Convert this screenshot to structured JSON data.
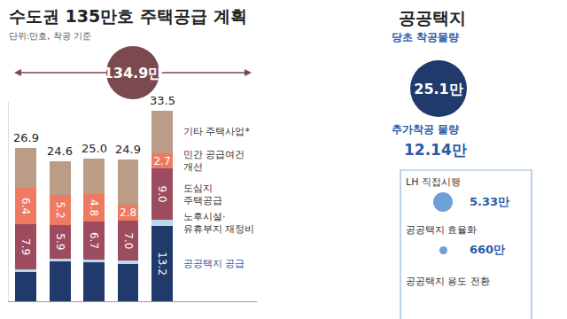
{
  "chart_data": {
    "type": "bar",
    "title": "수도권 135만호 주택공급 계획",
    "subtitle": "단위:만호, 착공 기준",
    "stacked": true,
    "tick_labels": false,
    "categories": [
      null,
      null,
      null,
      null,
      null
    ],
    "ylim": [
      0,
      35
    ],
    "series": [
      {
        "name": "공공택지 공급",
        "color": "#1f3a6b",
        "values": [
          5.1,
          7.0,
          6.8,
          6.6,
          13.2
        ],
        "value_labels": [
          null,
          null,
          null,
          null,
          "13.2"
        ]
      },
      {
        "name": "노후시설·\n유휴부지 재정비",
        "color": "#bcd6ee",
        "values": [
          0.5,
          0.5,
          0.5,
          0.5,
          1.1
        ],
        "data_labels": false
      },
      {
        "name": "도심지\n주택공급",
        "color": "#9d4b5e",
        "values": [
          7.9,
          5.9,
          6.7,
          7.0,
          9.0
        ],
        "value_labels": [
          "7.9",
          "5.9",
          "6.7",
          "7.0",
          "9.0"
        ]
      },
      {
        "name": "민간 공급여건\n개선",
        "color": "#ee7a62",
        "values": [
          6.4,
          5.2,
          4.8,
          2.8,
          2.7
        ],
        "data_labels": true
      },
      {
        "name": "기타 주택사업*",
        "color": "#bb9c87",
        "values": [
          7.0,
          6.0,
          6.2,
          8.0,
          7.5
        ],
        "data_labels": false
      }
    ],
    "totals": {
      "values": [
        26.9,
        24.6,
        25.0,
        24.9,
        33.5
      ],
      "value_labels": [
        "26.9",
        "24.6",
        "25.0",
        "24.9",
        "33.5"
      ]
    },
    "total_label": "134.9만"
  },
  "side_panel": {
    "title": "공공택지",
    "initial": {
      "label": "당초 착공물량",
      "value": "25.1만"
    },
    "additional": {
      "label": "추가착공 물량",
      "value": "12.14만"
    },
    "items": [
      {
        "label": "LH 직접시행",
        "value": "5.33만"
      },
      {
        "label": "공공택지 효율화",
        "value": "660만"
      },
      {
        "label": "공공택지 용도 전환"
      }
    ]
  }
}
